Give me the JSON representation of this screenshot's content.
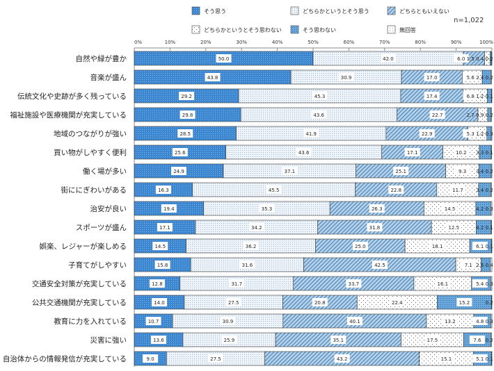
{
  "chart_data": {
    "type": "bar",
    "orientation": "horizontal",
    "stacked": true,
    "note": "n=1,022",
    "xlim": [
      0,
      100
    ],
    "xticks": [
      "0%",
      "10%",
      "20%",
      "30%",
      "40%",
      "50%",
      "60%",
      "70%",
      "80%",
      "90%",
      "100%"
    ],
    "legend_placement": "top",
    "categories": [
      "自然や緑が豊か",
      "音楽が盛ん",
      "伝統文化や史跡が多く残っている",
      "福祉施設や医療機関が充実している",
      "地域のつながりが強い",
      "買い物がしやすく便利",
      "働く場が多い",
      "街ににぎわいがある",
      "治安が良い",
      "スポーツが盛ん",
      "娯楽、レジャーが楽しめる",
      "子育てがしやすい",
      "交通安全対策が充実している",
      "公共交通機関が充実している",
      "教育に力を入れている",
      "災害に強い",
      "自治体からの情報発信が充実している"
    ],
    "series": [
      {
        "name": "そう思う",
        "color": "#3b86d1",
        "values": [
          50.0,
          43.8,
          29.2,
          29.8,
          28.5,
          25.6,
          24.9,
          16.3,
          19.4,
          17.1,
          14.5,
          15.8,
          12.8,
          14.0,
          10.7,
          13.6,
          9.0
        ]
      },
      {
        "name": "どちらかというとそう思う",
        "color": "#e6eff8",
        "values": [
          42.0,
          30.9,
          45.3,
          43.6,
          41.9,
          43.6,
          37.1,
          45.5,
          35.3,
          34.2,
          36.2,
          31.6,
          31.7,
          27.5,
          30.9,
          25.9,
          27.5
        ]
      },
      {
        "name": "どちらともいえない",
        "color": "#9fc3e0",
        "values": [
          6.0,
          17.0,
          17.4,
          22.7,
          22.9,
          17.1,
          25.1,
          22.8,
          26.3,
          31.8,
          25.0,
          42.5,
          33.7,
          20.8,
          40.1,
          35.1,
          43.2
        ]
      },
      {
        "name": "どちらかというとそう思わない",
        "color": "#ffffff",
        "values": [
          1.5,
          5.6,
          6.8,
          2.7,
          5.3,
          10.2,
          9.3,
          11.7,
          14.5,
          12.5,
          18.1,
          7.1,
          16.1,
          22.4,
          13.2,
          17.5,
          15.1
        ]
      },
      {
        "name": "そう思わない",
        "color": "#6aa8dc",
        "values": [
          0.4,
          2.4,
          1.2,
          0.9,
          1.2,
          3.3,
          3.4,
          3.4,
          4.2,
          4.2,
          6.1,
          2.6,
          5.4,
          15.2,
          4.8,
          7.6,
          5.1
        ]
      },
      {
        "name": "無回答",
        "color": "#f4f8fc",
        "values": [
          0.2,
          0.2,
          0.1,
          0.2,
          0.3,
          0.1,
          0.2,
          0.2,
          0.3,
          0.1,
          0.1,
          0.4,
          0.3,
          0.2,
          0.3,
          0.2,
          0.1
        ]
      }
    ]
  }
}
